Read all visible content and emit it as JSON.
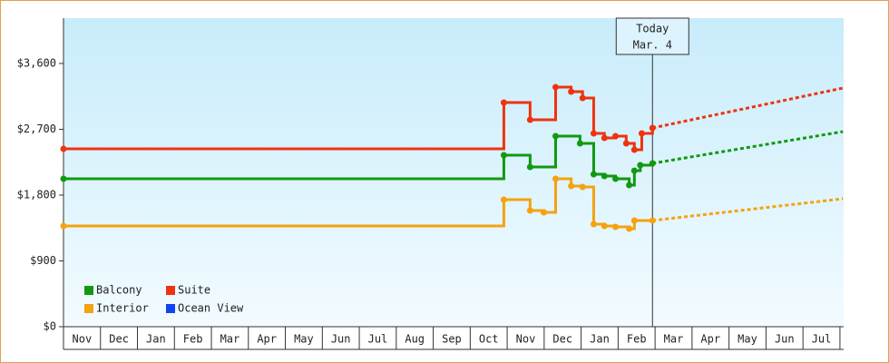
{
  "chart_data": {
    "type": "step-line",
    "categories": [
      "Nov",
      "Dec",
      "Jan",
      "Feb",
      "Mar",
      "Apr",
      "May",
      "Jun",
      "Jul",
      "Aug",
      "Sep",
      "Oct",
      "Nov",
      "Dec",
      "Jan",
      "Feb",
      "Mar",
      "Apr",
      "May",
      "Jun",
      "Jul"
    ],
    "xlim": [
      0,
      21.1
    ],
    "ylim": [
      0,
      4220
    ],
    "yticks": [
      {
        "value": 0,
        "label": "$0"
      },
      {
        "value": 900,
        "label": "$900"
      },
      {
        "value": 1800,
        "label": "$1,800"
      },
      {
        "value": 2700,
        "label": "$2,700"
      },
      {
        "value": 3600,
        "label": "$3,600"
      }
    ],
    "today": {
      "x": 15.93,
      "label": "Today",
      "date": "Mar. 4"
    },
    "series": [
      {
        "name": "Balcony",
        "color": "#119911",
        "x": [
          0,
          11.91,
          12.62,
          13.31,
          13.97,
          14.34,
          14.63,
          14.93,
          15.3,
          15.44,
          15.6,
          15.93
        ],
        "values": [
          2023,
          2346,
          2184,
          2606,
          2507,
          2085,
          2060,
          2023,
          1936,
          2134,
          2209,
          2234
        ],
        "forecast": {
          "x": 21.08,
          "value": 2668
        }
      },
      {
        "name": "Suite",
        "color": "#ee3311",
        "x": [
          0,
          11.91,
          12.62,
          13.31,
          13.73,
          14.04,
          14.34,
          14.63,
          14.93,
          15.22,
          15.44,
          15.64,
          15.93
        ],
        "values": [
          2432,
          3065,
          2830,
          3276,
          3214,
          3127,
          2643,
          2581,
          2606,
          2507,
          2420,
          2643,
          2718
        ],
        "forecast": {
          "x": 21.08,
          "value": 3264
        }
      },
      {
        "name": "Interior",
        "color": "#f5a20f",
        "x": [
          0,
          11.91,
          12.62,
          12.99,
          13.31,
          13.73,
          14.04,
          14.34,
          14.63,
          14.93,
          15.3,
          15.44,
          15.93
        ],
        "values": [
          1378,
          1737,
          1588,
          1564,
          2023,
          1924,
          1911,
          1402,
          1378,
          1365,
          1340,
          1452,
          1452
        ],
        "forecast": {
          "x": 21.08,
          "value": 1750
        }
      },
      {
        "name": "Ocean View",
        "color": "#1144ee",
        "x": [],
        "values": []
      }
    ]
  }
}
